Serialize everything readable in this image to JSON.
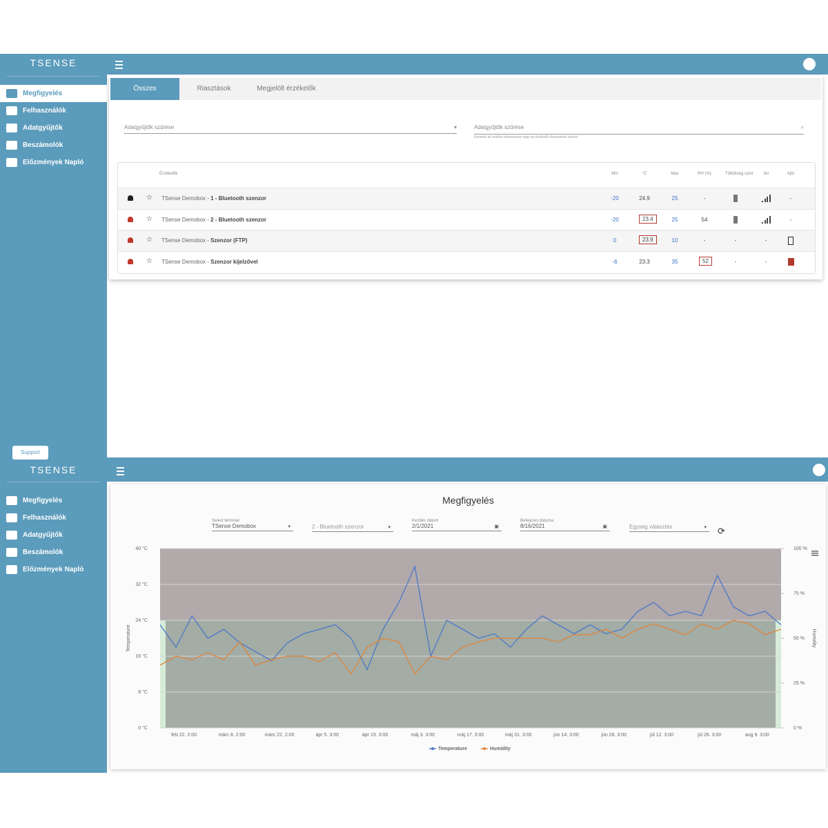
{
  "brand": "TSENSE",
  "sidebar": {
    "nav": [
      "Megfigyelés",
      "Felhasználók",
      "Adatgyűjtők",
      "Beszámolók",
      "Előzmények Napló"
    ],
    "support": "Support"
  },
  "monitor": {
    "tabs": [
      "Összes",
      "Riasztások",
      "Megjelölt érzékelők"
    ],
    "filter_select": "Adatgyűjtők szűrése",
    "search_placeholder": "Adatgyűjtők szűrése",
    "search_hint": "Keresés az eszköz elnevezése vagy az érzékelő elnevezése szerint",
    "table": {
      "header": [
        "Érzékelők",
        "Min",
        "°C",
        "Max",
        "RH (%)",
        "Töltöttség szint",
        "Jel",
        "Ajtó"
      ],
      "rows": [
        {
          "device": "TSense Demobox",
          "sensor": "1 - Bluetooth szenzor",
          "min": "-20",
          "temp": "24.9",
          "max": "25",
          "rh": "-",
          "battery": true,
          "signal": true,
          "door": "-",
          "alarm": false,
          "temp_alert": false,
          "rh_alert": false
        },
        {
          "device": "TSense Demobox",
          "sensor": "2 - Bluetooth szenzor",
          "min": "-20",
          "temp": "23.4",
          "max": "25",
          "rh": "54",
          "battery": true,
          "signal": true,
          "door": "-",
          "alarm": true,
          "temp_alert": true,
          "rh_alert": false
        },
        {
          "device": "TSense Demobox",
          "sensor": "Szenzor (FTP)",
          "min": "0",
          "temp": "23.9",
          "max": "10",
          "rh": "-",
          "battery": "-",
          "signal": "-",
          "door": "closed",
          "alarm": true,
          "temp_alert": true,
          "rh_alert": false
        },
        {
          "device": "TSense Demobox",
          "sensor": "Szenzor kijelzővel",
          "min": "-6",
          "temp": "23.3",
          "max": "35",
          "rh": "52",
          "battery": "-",
          "signal": "-",
          "door": "open",
          "alarm": true,
          "temp_alert": false,
          "rh_alert": true
        }
      ]
    }
  },
  "history": {
    "title": "Megfigyelés",
    "fields": [
      {
        "label": "Select terminal",
        "value": "TSense Demobox"
      },
      {
        "label": "",
        "value": "2 - Bluetooth szenzor"
      },
      {
        "label": "Kezdés dátum",
        "value": "2/1/2021"
      },
      {
        "label": "Befejezés dátuma",
        "value": "8/16/2021"
      },
      {
        "label": "",
        "value": "Egység választás"
      }
    ]
  },
  "chart_data": {
    "type": "line",
    "y_label": "Temperature",
    "y2_label": "Humidity",
    "xtick_labels": [
      "feb 22. 2:00",
      "márc 8. 2:00",
      "márc 22. 2:00",
      "ápr 5. 3:00",
      "ápr 19. 3:00",
      "máj 3. 3:00",
      "máj 17. 3:00",
      "máj 31. 3:00",
      "jún 14. 3:00",
      "jún 28. 3:00",
      "júl 12. 3:00",
      "júl 26. 3:00",
      "aug 9. 3:00"
    ],
    "ylim": [
      0,
      40
    ],
    "yticks": [
      {
        "value": 0,
        "label": "0 °C"
      },
      {
        "value": 8,
        "label": "8 °C"
      },
      {
        "value": 16,
        "label": "16 °C"
      },
      {
        "value": 24,
        "label": "24 °C"
      },
      {
        "value": 32,
        "label": "32 °C"
      },
      {
        "value": 40,
        "label": "40 °C"
      }
    ],
    "y2lim": [
      0,
      100
    ],
    "y2ticks": [
      {
        "value": 0,
        "label": "0 %"
      },
      {
        "value": 25,
        "label": "25 %"
      },
      {
        "value": 50,
        "label": "50 %"
      },
      {
        "value": 75,
        "label": "75 %"
      },
      {
        "value": 100,
        "label": "100 %"
      }
    ],
    "ok_range": [
      0,
      24
    ],
    "series": [
      {
        "name": "Temperature",
        "color": "#4a78c8",
        "values": [
          23,
          18,
          25,
          20,
          22,
          19,
          17,
          15,
          19,
          21,
          22,
          23,
          20,
          13,
          22,
          28,
          36,
          16,
          24,
          22,
          20,
          21,
          18,
          22,
          25,
          23,
          21,
          23,
          21,
          22,
          26,
          28,
          25,
          26,
          25,
          34,
          27,
          25,
          26,
          23
        ]
      },
      {
        "name": "Humidity",
        "color": "#e0843a",
        "axis": "y2",
        "values": [
          35,
          40,
          38,
          42,
          38,
          48,
          35,
          38,
          40,
          40,
          37,
          42,
          30,
          45,
          50,
          48,
          30,
          40,
          38,
          45,
          48,
          50,
          50,
          50,
          50,
          48,
          52,
          52,
          55,
          50,
          55,
          58,
          55,
          52,
          58,
          55,
          60,
          58,
          52,
          55
        ]
      }
    ]
  }
}
